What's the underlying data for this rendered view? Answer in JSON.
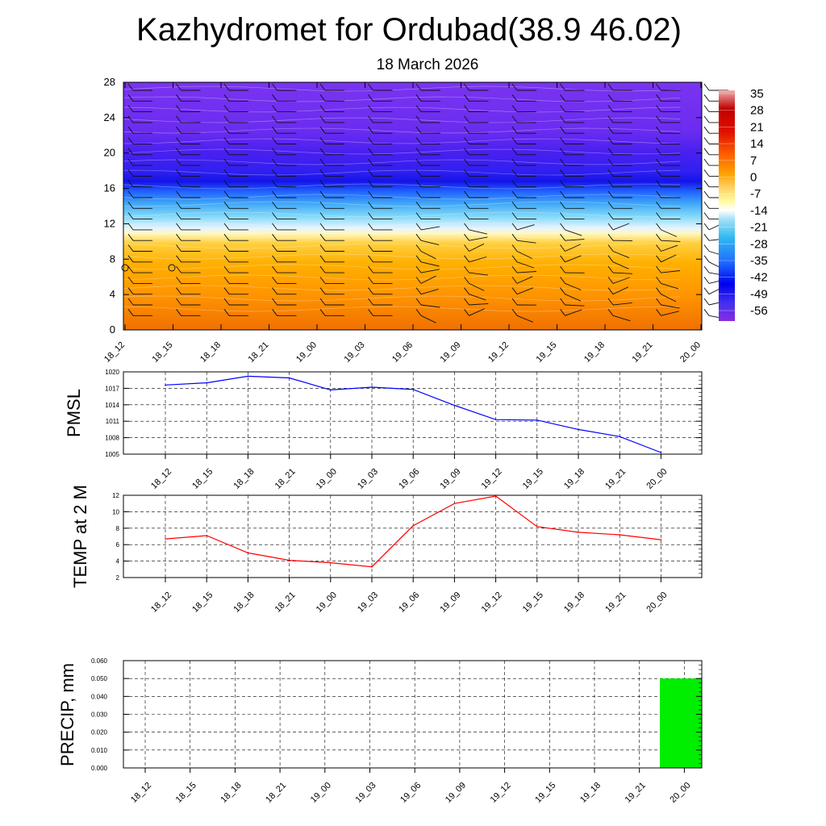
{
  "title": "Kazhydromet for Ordubad(38.9 46.02)",
  "subtitle": "18 March 2026",
  "chart_data": [
    {
      "type": "heatmap",
      "name": "vertical temperature cross-section with wind barbs",
      "x_ticks": [
        "18_12",
        "18_15",
        "18_18",
        "18_21",
        "19_00",
        "19_03",
        "19_06",
        "19_09",
        "19_12",
        "19_15",
        "19_18",
        "19_21",
        "20_00"
      ],
      "y_ticks": [
        0,
        4,
        8,
        12,
        16,
        20,
        24,
        28
      ],
      "ylim": [
        0,
        28
      ],
      "colorbar": {
        "labels": [
          "35",
          "28",
          "21",
          "14",
          "7",
          "0",
          "-7",
          "-14",
          "-21",
          "-28",
          "-35",
          "-42",
          "-49",
          "-56"
        ],
        "range": [
          -60,
          38
        ]
      },
      "colors": {
        "warm_low": "#f07000",
        "warm_mid": "#ffb000",
        "warm_high": "#ffd040",
        "pale": "#fff8c0",
        "cold_low": "#e0f0ff",
        "cold_mid": "#40c0f0",
        "cold_high": "#2080ff",
        "very_cold": "#1818e0",
        "top": "#7a30f0"
      }
    },
    {
      "type": "line",
      "name": "PMSL",
      "ylabel": "PMSL",
      "categories": [
        "18_12",
        "18_15",
        "18_18",
        "18_21",
        "19_00",
        "19_03",
        "19_06",
        "19_09",
        "19_12",
        "19_15",
        "19_18",
        "19_21",
        "20_00"
      ],
      "values": [
        1017.6,
        1018.0,
        1019.2,
        1018.9,
        1016.7,
        1017.2,
        1016.8,
        1013.9,
        1011.3,
        1011.2,
        1009.5,
        1008.2,
        1005.3
      ],
      "ylim": [
        1005,
        1020
      ],
      "y_ticks": [
        1005,
        1008,
        1011,
        1014,
        1017,
        1020
      ],
      "color": "#0000ff"
    },
    {
      "type": "line",
      "name": "TEMP at 2 M",
      "ylabel": "TEMP at 2 M",
      "categories": [
        "18_12",
        "18_15",
        "18_18",
        "18_21",
        "19_00",
        "19_03",
        "19_06",
        "19_09",
        "19_12",
        "19_15",
        "19_18",
        "19_21",
        "20_00"
      ],
      "values": [
        6.7,
        7.1,
        5.0,
        4.1,
        3.8,
        3.3,
        8.3,
        11.0,
        11.9,
        8.2,
        7.5,
        7.2,
        6.6
      ],
      "ylim": [
        2,
        12
      ],
      "y_ticks": [
        2,
        4,
        6,
        8,
        10,
        12
      ],
      "color": "#ff0000"
    },
    {
      "type": "bar",
      "name": "PRECIP, mm",
      "ylabel": "PRECIP, mm",
      "categories": [
        "18_12",
        "18_15",
        "18_18",
        "18_21",
        "19_00",
        "19_03",
        "19_06",
        "19_09",
        "19_12",
        "19_15",
        "19_18",
        "19_21",
        "20_00"
      ],
      "values": [
        0,
        0,
        0,
        0,
        0,
        0,
        0,
        0,
        0,
        0,
        0,
        0,
        0.05
      ],
      "ylim": [
        0,
        0.06
      ],
      "y_ticks": [
        "0.000",
        "0.010",
        "0.020",
        "0.030",
        "0.040",
        "0.050",
        "0.060"
      ],
      "color": "#00ee00"
    }
  ]
}
